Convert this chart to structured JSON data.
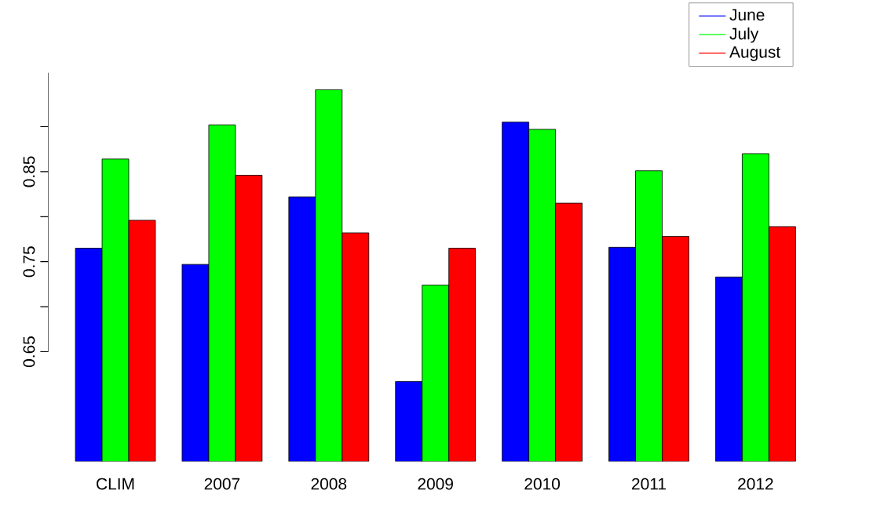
{
  "chart_data": {
    "type": "bar",
    "categories": [
      "CLIM",
      "2007",
      "2008",
      "2009",
      "2010",
      "2011",
      "2012"
    ],
    "series": [
      {
        "name": "June",
        "color": "#0000ff",
        "values": [
          0.765,
          0.747,
          0.822,
          0.617,
          0.905,
          0.766,
          0.733
        ]
      },
      {
        "name": "July",
        "color": "#00ff00",
        "values": [
          0.864,
          0.902,
          0.941,
          0.724,
          0.897,
          0.851,
          0.87
        ]
      },
      {
        "name": "August",
        "color": "#ff0000",
        "values": [
          0.796,
          0.846,
          0.782,
          0.765,
          0.815,
          0.778,
          0.789
        ]
      }
    ],
    "ylim": [
      0.528,
      0.96
    ],
    "yticks": [
      0.65,
      {
        "value": 0.7,
        "label": null
      },
      0.75,
      {
        "value": 0.8,
        "label": null
      },
      0.85,
      {
        "value": 0.9,
        "label": null
      }
    ],
    "legend": "top right"
  }
}
